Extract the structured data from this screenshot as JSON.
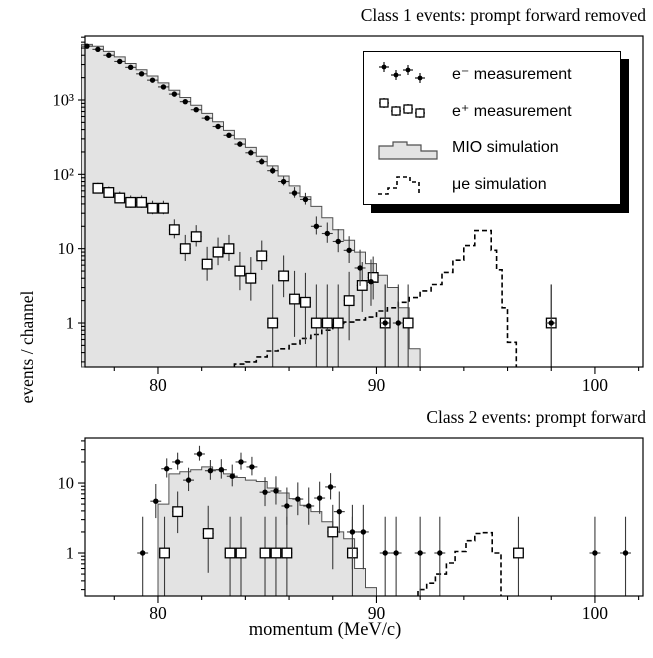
{
  "figure": {
    "x_axis_label": "momentum (MeV/c)",
    "y_axis_label": "events / channel"
  },
  "legend": {
    "items": [
      {
        "label": "e⁻ measurement"
      },
      {
        "label": "e⁺ measurement"
      },
      {
        "label": "MIO simulation"
      },
      {
        "label": "μe simulation"
      }
    ]
  },
  "colors": {
    "mio_fill": "#e3e3e3",
    "mio_stroke": "#4f4f4f",
    "marker": "#000000",
    "errorbar": "#3a3a3a",
    "frame": "#000000"
  },
  "chart_data": [
    {
      "panel": "top",
      "title": "Class 1 events: prompt forward removed",
      "type": "histogram+scatter",
      "y_scale": "log",
      "grid": false,
      "x_range": [
        76.66,
        102.2
      ],
      "y_range": [
        0.256,
        7260
      ],
      "x_ticks": [
        80,
        90,
        100
      ],
      "x_minor_tick_step": 2,
      "y_ticks": [
        {
          "v": 1,
          "label": "1"
        },
        {
          "v": 10,
          "label": "10"
        },
        {
          "v": 100,
          "label": "10²"
        },
        {
          "v": 1000,
          "label": "10³"
        }
      ],
      "series": [
        {
          "name": "MIO simulation",
          "type": "filled_histogram",
          "bin_start": 76.5,
          "bin_width": 0.5,
          "values": [
            5600,
            5300,
            4500,
            3800,
            3100,
            2550,
            2100,
            1700,
            1350,
            1080,
            850,
            660,
            510,
            390,
            300,
            230,
            175,
            130,
            95,
            70,
            50,
            37,
            26,
            18,
            13,
            9,
            6.3,
            4.4,
            3,
            1.6,
            0.45
          ]
        },
        {
          "name": "μe simulation",
          "type": "dashed_histogram",
          "edges": [
            83.5,
            84,
            84.5,
            85,
            85.5,
            86,
            86.5,
            87,
            87.5,
            88,
            88.5,
            89,
            89.5,
            90,
            90.5,
            91,
            91.5,
            92,
            92.5,
            93,
            93.5,
            94,
            94.5,
            95.25,
            95.5,
            95.75,
            96,
            96.4
          ],
          "values": [
            0.28,
            0.3,
            0.35,
            0.42,
            0.45,
            0.52,
            0.62,
            0.7,
            0.8,
            0.95,
            1.03,
            1.1,
            1.2,
            1.45,
            1.6,
            1.9,
            2.2,
            2.7,
            3.3,
            4.8,
            7,
            11,
            17.5,
            9.5,
            5.2,
            1.6,
            0.55
          ]
        },
        {
          "name": "e⁺ measurement",
          "type": "scatter_square",
          "x_half_width": 0.25,
          "points": [
            [
              77.25,
              65
            ],
            [
              77.75,
              57
            ],
            [
              78.25,
              48
            ],
            [
              78.75,
              42
            ],
            [
              79.25,
              42
            ],
            [
              79.75,
              35
            ],
            [
              80.25,
              35
            ],
            [
              80.75,
              18
            ],
            [
              81.25,
              10
            ],
            [
              81.75,
              14.5
            ],
            [
              82.25,
              6.2
            ],
            [
              82.75,
              9
            ],
            [
              83.25,
              10
            ],
            [
              83.75,
              5
            ],
            [
              84.25,
              4
            ],
            [
              84.75,
              8
            ],
            [
              85.25,
              1
            ],
            [
              85.75,
              4.3
            ],
            [
              86.25,
              2.1
            ],
            [
              86.75,
              1.9
            ],
            [
              87.25,
              1
            ],
            [
              87.75,
              1
            ],
            [
              88.25,
              1
            ],
            [
              88.75,
              2
            ],
            [
              89.35,
              3.2
            ],
            [
              89.85,
              4.1
            ],
            [
              90.4,
              1
            ],
            [
              91.45,
              1
            ],
            [
              98,
              1
            ]
          ]
        },
        {
          "name": "e⁻ measurement",
          "type": "scatter_dot",
          "x_half_width": 0.25,
          "points": [
            [
              76.75,
              5300
            ],
            [
              77.25,
              4800
            ],
            [
              77.75,
              4000
            ],
            [
              78.25,
              3300
            ],
            [
              78.75,
              2750
            ],
            [
              79.25,
              2250
            ],
            [
              79.75,
              1850
            ],
            [
              80.25,
              1500
            ],
            [
              80.75,
              1200
            ],
            [
              81.25,
              950
            ],
            [
              81.75,
              740
            ],
            [
              82.25,
              570
            ],
            [
              82.75,
              440
            ],
            [
              83.25,
              335
            ],
            [
              83.75,
              255
            ],
            [
              84.25,
              195
            ],
            [
              84.75,
              148
            ],
            [
              85.25,
              112
            ],
            [
              85.75,
              80
            ],
            [
              86.25,
              56
            ],
            [
              86.75,
              46
            ],
            [
              87.25,
              20
            ],
            [
              87.75,
              16
            ],
            [
              88.25,
              12.5
            ],
            [
              88.75,
              9.5
            ],
            [
              89.25,
              5.5
            ],
            [
              89.75,
              3.6
            ],
            [
              90.4,
              1
            ],
            [
              91,
              1
            ],
            [
              98,
              1
            ]
          ]
        }
      ]
    },
    {
      "panel": "bottom",
      "title": "Class 2 events: prompt forward",
      "type": "histogram+scatter",
      "y_scale": "log",
      "grid": false,
      "x_range": [
        76.66,
        102.2
      ],
      "y_range": [
        0.243,
        44
      ],
      "x_ticks": [
        80,
        90,
        100
      ],
      "x_minor_tick_step": 2,
      "y_ticks": [
        {
          "v": 1,
          "label": "1"
        },
        {
          "v": 10,
          "label": "10"
        }
      ],
      "series": [
        {
          "name": "MIO simulation",
          "type": "filled_histogram",
          "bin_start": 80.0,
          "bin_width": 0.5,
          "values": [
            5,
            13.5,
            14.5,
            15.5,
            17,
            15.5,
            13.5,
            12,
            11,
            10.5,
            8.5,
            7.2,
            6,
            4.8,
            3.9,
            2.8,
            2,
            1.6,
            0.6,
            0.32
          ]
        },
        {
          "name": "μe simulation",
          "type": "dashed_histogram",
          "edges": [
            91.9,
            92.3,
            92.7,
            93.2,
            93.6,
            94.1,
            94.5,
            94.9,
            95.3,
            95.7
          ],
          "values": [
            0.3,
            0.37,
            0.5,
            0.72,
            1.05,
            1.5,
            1.9,
            1.95,
            1.0
          ]
        },
        {
          "name": "e⁺ measurement",
          "type": "scatter_square",
          "x_half_width": 0.25,
          "points": [
            [
              80.3,
              1
            ],
            [
              80.9,
              3.9
            ],
            [
              82.3,
              1.9
            ],
            [
              83.3,
              1
            ],
            [
              83.8,
              1
            ],
            [
              84.9,
              1
            ],
            [
              85.4,
              1
            ],
            [
              85.9,
              1
            ],
            [
              88,
              2
            ],
            [
              88.9,
              1
            ],
            [
              96.5,
              1
            ]
          ]
        },
        {
          "name": "e⁻ measurement",
          "type": "scatter_dot",
          "x_half_width": 0.25,
          "points": [
            [
              79.3,
              1
            ],
            [
              79.9,
              5.5
            ],
            [
              80.4,
              16
            ],
            [
              80.9,
              20
            ],
            [
              81.4,
              11
            ],
            [
              81.9,
              26
            ],
            [
              82.4,
              15
            ],
            [
              82.9,
              15.5
            ],
            [
              83.4,
              12.5
            ],
            [
              83.8,
              20
            ],
            [
              84.3,
              17
            ],
            [
              84.9,
              7.4
            ],
            [
              85.4,
              7.7
            ],
            [
              85.9,
              4.7
            ],
            [
              86.4,
              5.9
            ],
            [
              86.9,
              4.7
            ],
            [
              87.4,
              6.1
            ],
            [
              87.9,
              8.8
            ],
            [
              88.3,
              3.9
            ],
            [
              88.9,
              2
            ],
            [
              89.4,
              2
            ],
            [
              90.4,
              1
            ],
            [
              90.9,
              1
            ],
            [
              92,
              1
            ],
            [
              92.9,
              1
            ],
            [
              100,
              1
            ],
            [
              101.4,
              1
            ]
          ]
        }
      ]
    }
  ]
}
